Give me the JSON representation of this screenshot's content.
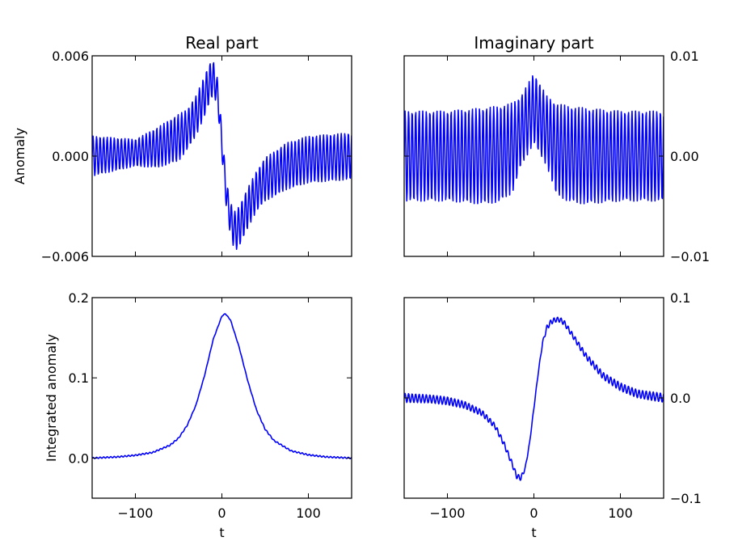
{
  "colors": {
    "line": "#0000ff",
    "background": "#ffffff",
    "axes": "#000000"
  },
  "chart_data": [
    {
      "id": "real-anomaly",
      "type": "line",
      "title": "Real part",
      "xlabel": "",
      "ylabel": "Anomaly",
      "xlim": [
        -150,
        150
      ],
      "ylim": [
        -0.006,
        0.006
      ],
      "yticks": [
        -0.006,
        0.0,
        0.006
      ],
      "ytick_labels": [
        "−0.006",
        "0.000",
        "0.006"
      ],
      "xticks": [
        -100,
        0,
        100
      ],
      "xtick_labels": [
        "",
        "",
        ""
      ],
      "ytick_side": "left",
      "grid": false,
      "legend": "none",
      "series": [
        {
          "x": [
            -150,
            -125,
            -100,
            -75,
            -50,
            -40,
            -30,
            -20,
            -15,
            -10,
            -5,
            0,
            5,
            10,
            15,
            20,
            30,
            40,
            50,
            75,
            100,
            125,
            150
          ],
          "y": [
            0.0,
            0.0001,
            0.0002,
            0.0005,
            0.0011,
            0.0016,
            0.0024,
            0.0036,
            0.0043,
            0.0047,
            0.0038,
            0.0008,
            -0.0022,
            -0.0038,
            -0.0045,
            -0.0042,
            -0.0031,
            -0.0021,
            -0.0014,
            -0.0006,
            -0.0002,
            -0.0001,
            0.0
          ],
          "oscillation": {
            "amplitude": [
              0.0012,
              0.001,
              0.0008,
              0.0012,
              0.0014,
              0.0012,
              0.0012,
              0.0012,
              0.0012,
              0.001,
              0.0008,
              0.0008,
              0.0008,
              0.001,
              0.0012,
              0.0012,
              0.0012,
              0.0012,
              0.0013,
              0.0014,
              0.0014,
              0.0014,
              0.0014
            ],
            "period": 4.1
          }
        }
      ]
    },
    {
      "id": "imag-anomaly",
      "type": "line",
      "title": "Imaginary part",
      "xlabel": "",
      "ylabel": "",
      "xlim": [
        -150,
        150
      ],
      "ylim": [
        -0.01,
        0.01
      ],
      "yticks": [
        -0.01,
        0.0,
        0.01
      ],
      "ytick_labels": [
        "−0.01",
        "0.00",
        "0.01"
      ],
      "xticks": [
        -100,
        0,
        100
      ],
      "xtick_labels": [
        "",
        "",
        ""
      ],
      "ytick_side": "right",
      "grid": false,
      "legend": "none",
      "series": [
        {
          "x": [
            -150,
            -100,
            -60,
            -40,
            -25,
            -15,
            -5,
            0,
            5,
            15,
            25,
            40,
            60,
            100,
            150
          ],
          "y": [
            0.0,
            0.0,
            0.0,
            0.0002,
            0.0008,
            0.0025,
            0.004,
            0.0048,
            0.004,
            0.0025,
            0.0008,
            0.0002,
            0.0,
            0.0,
            0.0
          ],
          "oscillation": {
            "amplitude": [
              0.0045,
              0.0045,
              0.0048,
              0.0048,
              0.0045,
              0.0035,
              0.0035,
              0.0035,
              0.0035,
              0.0035,
              0.0045,
              0.0048,
              0.0048,
              0.0045,
              0.0045
            ],
            "period": 4.1
          }
        }
      ]
    },
    {
      "id": "real-integrated",
      "type": "line",
      "title": "",
      "xlabel": "t",
      "ylabel": "Integrated anomaly",
      "xlim": [
        -150,
        150
      ],
      "ylim": [
        -0.05,
        0.2
      ],
      "yticks": [
        0.0,
        0.1,
        0.2
      ],
      "ytick_labels": [
        "0.0",
        "0.1",
        "0.2"
      ],
      "xticks": [
        -100,
        0,
        100
      ],
      "xtick_labels": [
        "−100",
        "0",
        "100"
      ],
      "ytick_side": "left",
      "grid": false,
      "legend": "none",
      "series": [
        {
          "x": [
            -150,
            -120,
            -100,
            -80,
            -60,
            -50,
            -40,
            -30,
            -20,
            -10,
            0,
            4,
            10,
            20,
            30,
            40,
            50,
            60,
            80,
            100,
            120,
            150
          ],
          "y": [
            0.0,
            0.0015,
            0.0035,
            0.007,
            0.016,
            0.025,
            0.041,
            0.066,
            0.103,
            0.148,
            0.177,
            0.18,
            0.172,
            0.138,
            0.096,
            0.06,
            0.036,
            0.022,
            0.009,
            0.004,
            0.0015,
            0.0
          ],
          "oscillation": {
            "amplitude": [
              0.0008,
              0.0008,
              0.0008,
              0.0008,
              0.0008,
              0.0008,
              0.0006,
              0.0004,
              0.0004,
              0.0004,
              0.0004,
              0.0004,
              0.0004,
              0.0004,
              0.0004,
              0.0006,
              0.0008,
              0.0008,
              0.0008,
              0.0008,
              0.0008,
              0.0008
            ],
            "period": 4.1
          }
        }
      ]
    },
    {
      "id": "imag-integrated",
      "type": "line",
      "title": "",
      "xlabel": "t",
      "ylabel": "",
      "xlim": [
        -150,
        150
      ],
      "ylim": [
        -0.1,
        0.1
      ],
      "yticks": [
        -0.1,
        0.0,
        0.1
      ],
      "ytick_labels": [
        "−0.1",
        "0.0",
        "0.1"
      ],
      "xticks": [
        -100,
        0,
        100
      ],
      "xtick_labels": [
        "−100",
        "0",
        "100"
      ],
      "ytick_side": "right",
      "grid": false,
      "legend": "none",
      "series": [
        {
          "x": [
            -150,
            -120,
            -100,
            -80,
            -60,
            -45,
            -35,
            -25,
            -20,
            -15,
            -10,
            -5,
            0,
            5,
            10,
            15,
            20,
            25,
            30,
            35,
            45,
            60,
            80,
            100,
            120,
            150
          ],
          "y": [
            0.0,
            -0.001,
            -0.003,
            -0.007,
            -0.015,
            -0.028,
            -0.045,
            -0.066,
            -0.078,
            -0.08,
            -0.07,
            -0.045,
            -0.01,
            0.025,
            0.055,
            0.07,
            0.076,
            0.078,
            0.078,
            0.075,
            0.062,
            0.042,
            0.022,
            0.011,
            0.004,
            0.0
          ],
          "oscillation": {
            "amplitude": [
              0.0045,
              0.004,
              0.004,
              0.0035,
              0.003,
              0.0025,
              0.0025,
              0.0025,
              0.0025,
              0.0025,
              0.0015,
              0.001,
              0.001,
              0.001,
              0.0015,
              0.0025,
              0.0025,
              0.0025,
              0.0025,
              0.0025,
              0.0025,
              0.003,
              0.0035,
              0.004,
              0.004,
              0.0045
            ],
            "period": 4.1
          }
        }
      ]
    }
  ]
}
